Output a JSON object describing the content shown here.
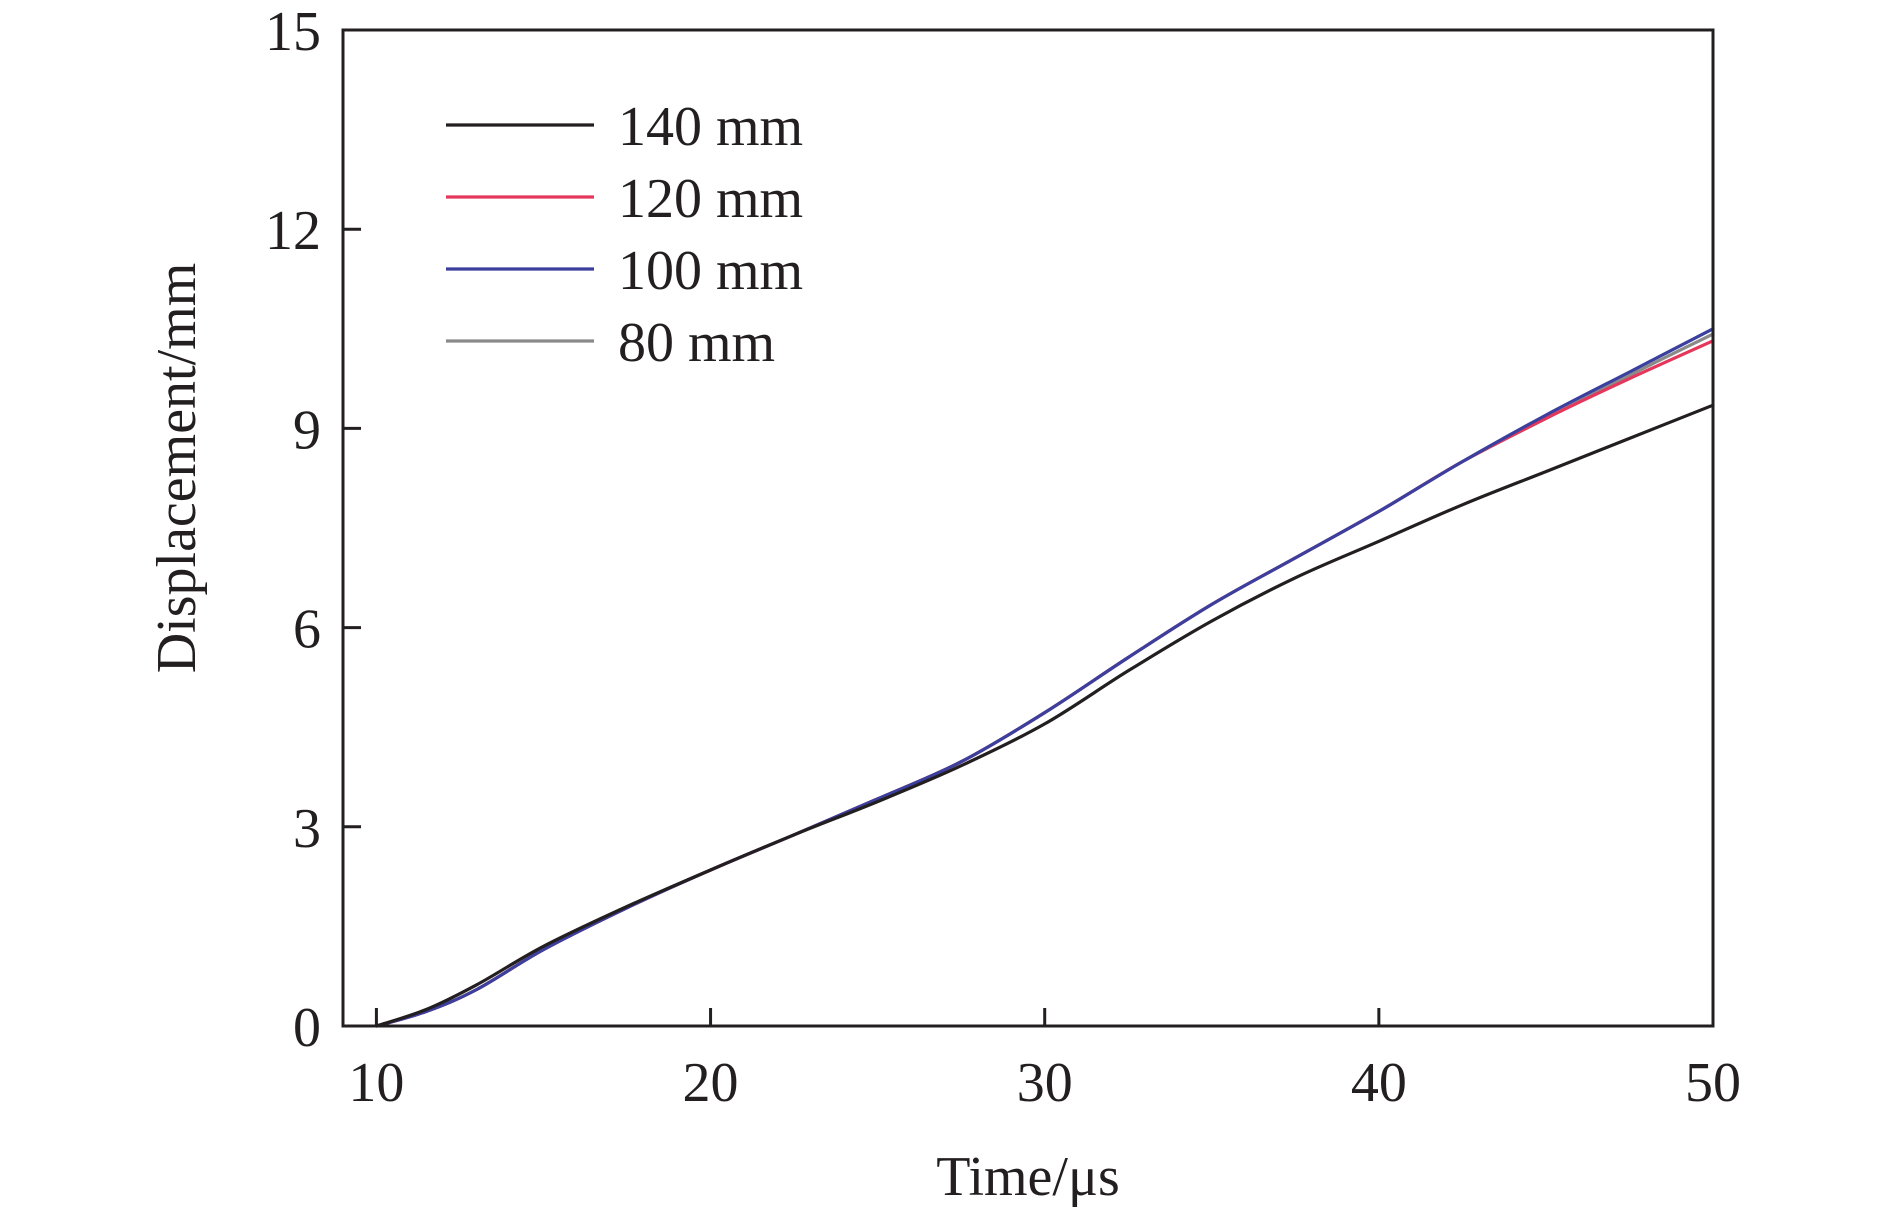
{
  "chart_data": {
    "type": "line",
    "xlabel": "Time/μs",
    "ylabel": "Displacement/mm",
    "xlim": [
      9,
      50
    ],
    "ylim": [
      0,
      15
    ],
    "x_ticks": [
      10,
      20,
      30,
      40,
      50
    ],
    "y_ticks": [
      0,
      3,
      6,
      9,
      12,
      15
    ],
    "x_tick_labels": [
      "10",
      "20",
      "30",
      "40",
      "50"
    ],
    "y_tick_labels": [
      "0",
      "3",
      "6",
      "9",
      "12",
      "15"
    ],
    "grid": false,
    "legend_position": "top-left",
    "series": [
      {
        "name": "140 mm",
        "color": "#231f20",
        "x": [
          10,
          11.5,
          13,
          15,
          17.5,
          20,
          22.5,
          25,
          27.5,
          30,
          32.5,
          35,
          37.5,
          40,
          42.5,
          45,
          47.5,
          50
        ],
        "y": [
          0,
          0.25,
          0.62,
          1.2,
          1.8,
          2.35,
          2.88,
          3.38,
          3.92,
          4.55,
          5.35,
          6.1,
          6.75,
          7.3,
          7.85,
          8.35,
          8.85,
          9.35
        ]
      },
      {
        "name": "120 mm",
        "color": "#e5365c",
        "x": [
          10,
          11.5,
          13,
          15,
          17.5,
          20,
          22.5,
          25,
          27.5,
          30,
          32.5,
          35,
          37.5,
          40,
          42.5,
          45,
          47.5,
          50
        ],
        "y": [
          0,
          0.22,
          0.55,
          1.15,
          1.78,
          2.35,
          2.88,
          3.42,
          3.98,
          4.72,
          5.55,
          6.35,
          7.05,
          7.75,
          8.5,
          9.15,
          9.75,
          10.32
        ]
      },
      {
        "name": "100 mm",
        "color": "#3b3f9e",
        "x": [
          10,
          11.5,
          13,
          15,
          17.5,
          20,
          22.5,
          25,
          27.5,
          30,
          32.5,
          35,
          37.5,
          40,
          42.5,
          45,
          47.5,
          50
        ],
        "y": [
          0,
          0.22,
          0.55,
          1.15,
          1.78,
          2.35,
          2.88,
          3.42,
          3.98,
          4.72,
          5.55,
          6.35,
          7.05,
          7.75,
          8.5,
          9.2,
          9.85,
          10.5
        ]
      },
      {
        "name": "80 mm",
        "color": "#8a8a8a",
        "x": [
          10,
          11.5,
          13,
          15,
          17.5,
          20,
          22.5,
          25,
          27.5,
          30,
          32.5,
          35,
          37.5,
          40,
          42.5,
          45,
          47.5,
          50
        ],
        "y": [
          0,
          0.22,
          0.55,
          1.15,
          1.78,
          2.35,
          2.88,
          3.42,
          3.98,
          4.72,
          5.55,
          6.35,
          7.05,
          7.75,
          8.5,
          9.15,
          9.8,
          10.42
        ]
      }
    ]
  }
}
